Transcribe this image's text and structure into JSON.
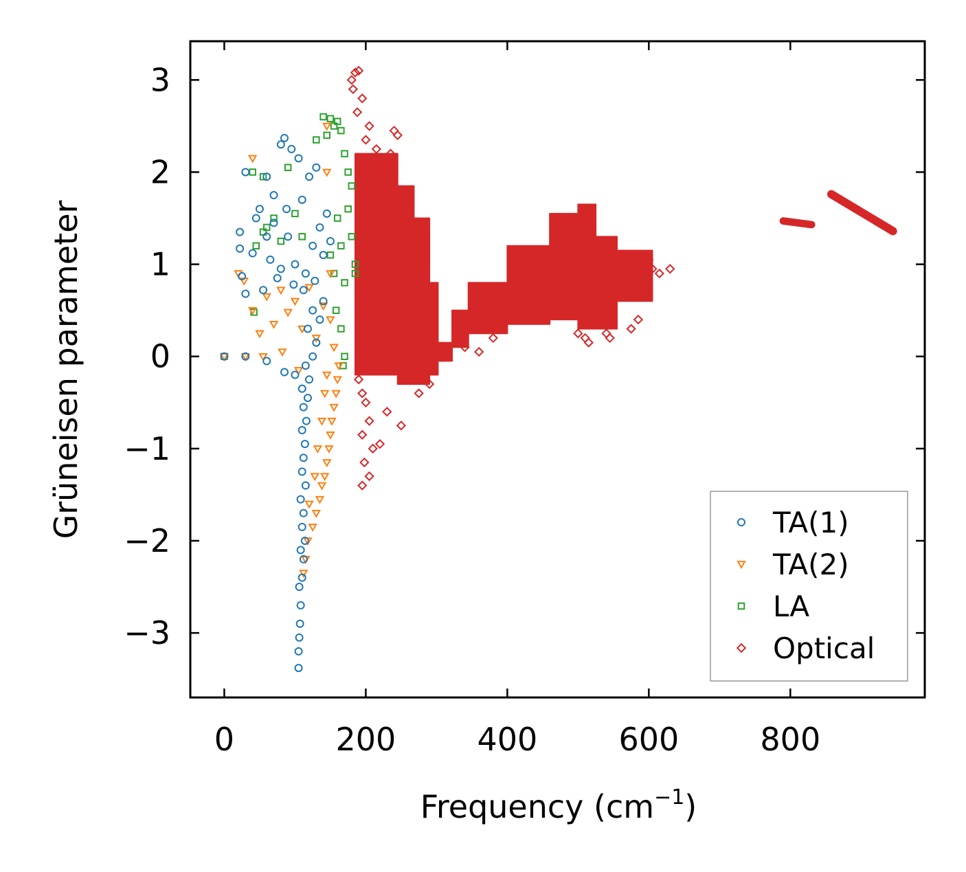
{
  "chart_data": {
    "type": "scatter",
    "title": "",
    "xlabel": "Frequency (cm",
    "xlabel_sup": "−1",
    "xlabel_close": ")",
    "ylabel": "Grüneisen parameter",
    "xlim": [
      -48,
      990
    ],
    "ylim": [
      -3.7,
      3.42
    ],
    "xticks": [
      0,
      200,
      400,
      600,
      800
    ],
    "xtick_labels": [
      "0",
      "200",
      "400",
      "600",
      "800"
    ],
    "yticks": [
      -3,
      -2,
      -1,
      0,
      1,
      2,
      3
    ],
    "ytick_labels": [
      "−3",
      "−2",
      "−1",
      "0",
      "1",
      "2",
      "3"
    ],
    "grid": false,
    "legend_position": "bottom-right",
    "series": [
      {
        "name": "TA(1)",
        "marker": "circle",
        "color": "#1f77b4",
        "points": [
          [
            0,
            0
          ],
          [
            30,
            0
          ],
          [
            60,
            -0.05
          ],
          [
            85,
            -0.17
          ],
          [
            100,
            -0.2
          ],
          [
            105,
            -3.38
          ],
          [
            105,
            -3.2
          ],
          [
            106,
            -3.05
          ],
          [
            107,
            -2.9
          ],
          [
            108,
            -2.7
          ],
          [
            106,
            -2.5
          ],
          [
            110,
            -2.4
          ],
          [
            112,
            -2.2
          ],
          [
            108,
            -2.1
          ],
          [
            114,
            -2.0
          ],
          [
            110,
            -1.85
          ],
          [
            112,
            -1.7
          ],
          [
            108,
            -1.55
          ],
          [
            115,
            -1.4
          ],
          [
            110,
            -1.25
          ],
          [
            112,
            -1.1
          ],
          [
            114,
            -0.95
          ],
          [
            110,
            -0.8
          ],
          [
            116,
            -0.7
          ],
          [
            112,
            -0.55
          ],
          [
            118,
            -0.45
          ],
          [
            110,
            -0.35
          ],
          [
            120,
            -0.25
          ],
          [
            115,
            -0.1
          ],
          [
            125,
            0.0
          ],
          [
            130,
            0.15
          ],
          [
            118,
            0.3
          ],
          [
            135,
            0.4
          ],
          [
            125,
            0.5
          ],
          [
            140,
            0.6
          ],
          [
            22,
            1.35
          ],
          [
            22,
            1.17
          ],
          [
            25,
            0.87
          ],
          [
            30,
            0.68
          ],
          [
            30,
            2.0
          ],
          [
            40,
            1.12
          ],
          [
            45,
            1.5
          ],
          [
            50,
            1.6
          ],
          [
            55,
            0.72
          ],
          [
            60,
            1.95
          ],
          [
            65,
            1.05
          ],
          [
            70,
            1.45
          ],
          [
            75,
            0.85
          ],
          [
            80,
            2.3
          ],
          [
            85,
            2.37
          ],
          [
            90,
            1.3
          ],
          [
            95,
            2.25
          ],
          [
            100,
            1.0
          ],
          [
            105,
            2.15
          ],
          [
            110,
            1.7
          ],
          [
            115,
            0.9
          ],
          [
            120,
            1.95
          ],
          [
            125,
            1.2
          ],
          [
            130,
            2.05
          ],
          [
            135,
            1.4
          ],
          [
            140,
            1.1
          ],
          [
            145,
            1.55
          ],
          [
            150,
            1.25
          ],
          [
            98,
            0.78
          ],
          [
            112,
            0.72
          ],
          [
            128,
            0.82
          ],
          [
            80,
            0.95
          ],
          [
            70,
            1.75
          ],
          [
            60,
            1.3
          ],
          [
            88,
            1.6
          ]
        ]
      },
      {
        "name": "TA(2)",
        "marker": "triangle-down",
        "color": "#ff7f0e",
        "points": [
          [
            0,
            0
          ],
          [
            30,
            0
          ],
          [
            55,
            0
          ],
          [
            82,
            0.05
          ],
          [
            105,
            -0.15
          ],
          [
            112,
            -2.35
          ],
          [
            115,
            -2.2
          ],
          [
            118,
            -2.0
          ],
          [
            125,
            -1.85
          ],
          [
            130,
            -1.7
          ],
          [
            135,
            -1.55
          ],
          [
            138,
            -1.4
          ],
          [
            142,
            -1.3
          ],
          [
            145,
            -1.15
          ],
          [
            148,
            -1.0
          ],
          [
            150,
            -0.85
          ],
          [
            152,
            -0.7
          ],
          [
            155,
            -0.55
          ],
          [
            158,
            -0.4
          ],
          [
            160,
            -0.25
          ],
          [
            162,
            -0.1
          ],
          [
            120,
            -1.6
          ],
          [
            128,
            -1.3
          ],
          [
            132,
            -1.0
          ],
          [
            138,
            -0.7
          ],
          [
            142,
            -0.4
          ],
          [
            145,
            -0.2
          ],
          [
            20,
            0.9
          ],
          [
            28,
            0.82
          ],
          [
            40,
            0.5
          ],
          [
            50,
            0.25
          ],
          [
            60,
            0.65
          ],
          [
            70,
            0.35
          ],
          [
            80,
            0.72
          ],
          [
            90,
            0.48
          ],
          [
            100,
            0.6
          ],
          [
            110,
            0.3
          ],
          [
            120,
            0.75
          ],
          [
            130,
            0.2
          ],
          [
            140,
            0.55
          ],
          [
            150,
            0.4
          ],
          [
            145,
            2.5
          ],
          [
            145,
            2.0
          ],
          [
            40,
            2.15
          ],
          [
            150,
            0.9
          ],
          [
            155,
            0.1
          ]
        ]
      },
      {
        "name": "LA",
        "marker": "square",
        "color": "#2ca02c",
        "points": [
          [
            0,
            0
          ],
          [
            40,
            2.0
          ],
          [
            55,
            1.95
          ],
          [
            42,
            0.48
          ],
          [
            45,
            1.2
          ],
          [
            55,
            1.35
          ],
          [
            60,
            1.4
          ],
          [
            70,
            1.5
          ],
          [
            80,
            1.25
          ],
          [
            90,
            2.05
          ],
          [
            100,
            1.55
          ],
          [
            110,
            1.3
          ],
          [
            130,
            2.35
          ],
          [
            140,
            2.6
          ],
          [
            145,
            2.4
          ],
          [
            150,
            2.58
          ],
          [
            155,
            2.5
          ],
          [
            160,
            2.55
          ],
          [
            165,
            2.45
          ],
          [
            170,
            2.2
          ],
          [
            175,
            2.0
          ],
          [
            180,
            1.85
          ],
          [
            150,
            1.1
          ],
          [
            155,
            0.9
          ],
          [
            160,
            1.5
          ],
          [
            165,
            1.2
          ],
          [
            170,
            0.8
          ],
          [
            175,
            1.6
          ],
          [
            180,
            1.3
          ],
          [
            185,
            1.0
          ],
          [
            165,
            0.3
          ],
          [
            170,
            0.0
          ],
          [
            168,
            -0.1
          ],
          [
            158,
            0.5
          ],
          [
            185,
            0.9
          ]
        ]
      },
      {
        "name": "Optical",
        "marker": "diamond",
        "color": "#d62728",
        "points": [
          [
            180,
            3.0
          ],
          [
            185,
            3.08
          ],
          [
            190,
            3.1
          ],
          [
            182,
            2.9
          ],
          [
            195,
            2.8
          ],
          [
            188,
            2.65
          ],
          [
            205,
            2.5
          ],
          [
            200,
            2.35
          ],
          [
            215,
            2.25
          ],
          [
            240,
            2.45
          ],
          [
            245,
            2.4
          ],
          [
            235,
            2.2
          ],
          [
            190,
            -0.25
          ],
          [
            195,
            -0.4
          ],
          [
            200,
            -0.5
          ],
          [
            205,
            -0.7
          ],
          [
            195,
            -0.85
          ],
          [
            210,
            -1.0
          ],
          [
            198,
            -1.15
          ],
          [
            205,
            -1.3
          ],
          [
            195,
            -1.4
          ],
          [
            220,
            -0.95
          ],
          [
            230,
            -0.6
          ],
          [
            250,
            -0.75
          ],
          [
            275,
            -0.4
          ],
          [
            290,
            -0.3
          ],
          [
            420,
            1.1
          ],
          [
            430,
            1.0
          ],
          [
            415,
            1.15
          ],
          [
            500,
            0.25
          ],
          [
            510,
            0.2
          ],
          [
            515,
            0.15
          ],
          [
            540,
            0.25
          ],
          [
            545,
            0.2
          ],
          [
            555,
            1.1
          ],
          [
            580,
            1.0
          ],
          [
            600,
            1.05
          ],
          [
            605,
            0.95
          ],
          [
            615,
            0.9
          ],
          [
            630,
            0.95
          ],
          [
            340,
            0.1
          ],
          [
            360,
            0.05
          ],
          [
            380,
            0.2
          ],
          [
            575,
            0.3
          ],
          [
            585,
            0.4
          ]
        ]
      }
    ],
    "optical_bands": [
      {
        "x0": 185,
        "x1": 245,
        "ylo": -0.2,
        "yhi": 2.2
      },
      {
        "x0": 245,
        "x1": 268,
        "ylo": -0.3,
        "yhi": 1.85
      },
      {
        "x0": 268,
        "x1": 290,
        "ylo": -0.3,
        "yhi": 1.5
      },
      {
        "x0": 290,
        "x1": 302,
        "ylo": -0.2,
        "yhi": 0.8
      },
      {
        "x0": 302,
        "x1": 322,
        "ylo": -0.05,
        "yhi": 0.15
      },
      {
        "x0": 322,
        "x1": 345,
        "ylo": 0.1,
        "yhi": 0.5
      },
      {
        "x0": 345,
        "x1": 400,
        "ylo": 0.25,
        "yhi": 0.8
      },
      {
        "x0": 400,
        "x1": 460,
        "ylo": 0.35,
        "yhi": 1.2
      },
      {
        "x0": 460,
        "x1": 500,
        "ylo": 0.4,
        "yhi": 1.55
      },
      {
        "x0": 500,
        "x1": 525,
        "ylo": 0.3,
        "yhi": 1.65
      },
      {
        "x0": 525,
        "x1": 555,
        "ylo": 0.3,
        "yhi": 1.3
      },
      {
        "x0": 555,
        "x1": 605,
        "ylo": 0.6,
        "yhi": 1.15
      }
    ],
    "optical_lines": [
      {
        "x": [
          790,
          830
        ],
        "y": [
          1.47,
          1.43
        ],
        "width": 0.08
      },
      {
        "x": [
          858,
          945
        ],
        "y": [
          1.76,
          1.36
        ],
        "width": 0.09
      }
    ]
  }
}
